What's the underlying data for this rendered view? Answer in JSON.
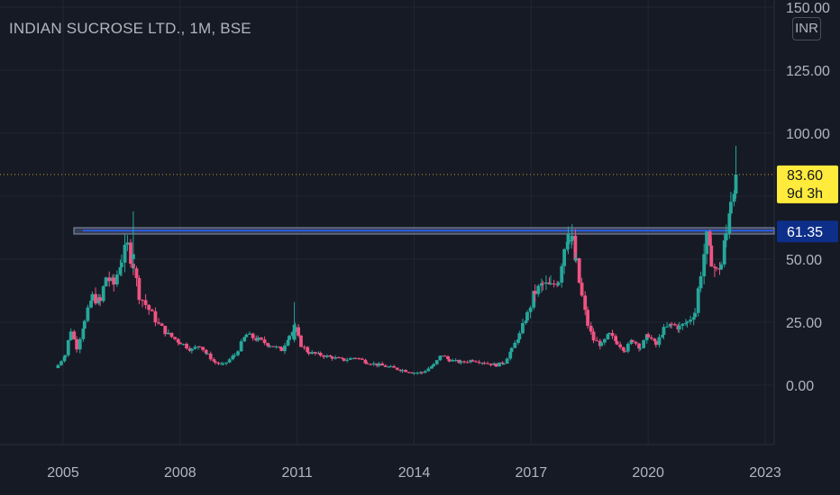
{
  "header": {
    "title": "INDIAN SUCROSE LTD., 1M, BSE"
  },
  "currency_button": {
    "label": "INR"
  },
  "price_labels": {
    "last_price": "83.60",
    "countdown": "9d 3h",
    "level_price": "61.35"
  },
  "colors": {
    "background": "#161a25",
    "up": "#26a69a",
    "down": "#ef5382",
    "grid": "#232734",
    "text": "#b2b5be",
    "last_price_badge": "#ffeb3b",
    "level_badge": "#0d2f8a",
    "level_box": "#3b4560"
  },
  "chart_data": {
    "type": "candlestick",
    "title": "INDIAN SUCROSE LTD., 1M, BSE",
    "interval": "1M",
    "exchange": "BSE",
    "currency": "INR",
    "y_axis_ticks": [
      "150.00",
      "125.00",
      "100.00",
      "83.60",
      "61.35",
      "50.00",
      "25.00",
      "0.00"
    ],
    "x_axis_ticks": [
      "2005",
      "2008",
      "2011",
      "2014",
      "2017",
      "2020",
      "2023"
    ],
    "ylim": [
      -20,
      150
    ],
    "xlim": [
      2004.0,
      2023.4
    ],
    "last_price": 83.6,
    "horizontal_level": {
      "value": 61.35,
      "low": 60.0,
      "high": 62.5,
      "from": 2005.3
    },
    "grid": true,
    "series": [
      {
        "t": 2004.87,
        "c": 8
      },
      {
        "t": 2005.05,
        "c": 12
      },
      {
        "t": 2005.2,
        "c": 22
      },
      {
        "t": 2005.35,
        "c": 15
      },
      {
        "t": 2005.55,
        "c": 25
      },
      {
        "t": 2005.75,
        "c": 35
      },
      {
        "t": 2005.95,
        "c": 33
      },
      {
        "t": 2006.1,
        "c": 43
      },
      {
        "t": 2006.3,
        "c": 40
      },
      {
        "t": 2006.5,
        "c": 50
      },
      {
        "t": 2006.65,
        "c": 55
      },
      {
        "t": 2006.8,
        "c": 48
      },
      {
        "t": 2006.95,
        "c": 36
      },
      {
        "t": 2007.2,
        "c": 30
      },
      {
        "t": 2007.45,
        "c": 24
      },
      {
        "t": 2007.7,
        "c": 20
      },
      {
        "t": 2008.0,
        "c": 17
      },
      {
        "t": 2008.3,
        "c": 14
      },
      {
        "t": 2008.5,
        "c": 16
      },
      {
        "t": 2008.7,
        "c": 12
      },
      {
        "t": 2008.9,
        "c": 9
      },
      {
        "t": 2009.1,
        "c": 8
      },
      {
        "t": 2009.4,
        "c": 12
      },
      {
        "t": 2009.7,
        "c": 20
      },
      {
        "t": 2010.0,
        "c": 18
      },
      {
        "t": 2010.3,
        "c": 16
      },
      {
        "t": 2010.6,
        "c": 14
      },
      {
        "t": 2010.8,
        "c": 20
      },
      {
        "t": 2010.95,
        "c": 22
      },
      {
        "t": 2011.1,
        "c": 16
      },
      {
        "t": 2011.3,
        "c": 13
      },
      {
        "t": 2011.6,
        "c": 12
      },
      {
        "t": 2011.9,
        "c": 11
      },
      {
        "t": 2012.2,
        "c": 10
      },
      {
        "t": 2012.5,
        "c": 11
      },
      {
        "t": 2012.8,
        "c": 9
      },
      {
        "t": 2013.1,
        "c": 8
      },
      {
        "t": 2013.4,
        "c": 7
      },
      {
        "t": 2013.7,
        "c": 6
      },
      {
        "t": 2014.0,
        "c": 5
      },
      {
        "t": 2014.2,
        "c": 5
      },
      {
        "t": 2014.5,
        "c": 8
      },
      {
        "t": 2014.7,
        "c": 12
      },
      {
        "t": 2014.9,
        "c": 10
      },
      {
        "t": 2015.2,
        "c": 9
      },
      {
        "t": 2015.5,
        "c": 10
      },
      {
        "t": 2015.8,
        "c": 9
      },
      {
        "t": 2016.1,
        "c": 8
      },
      {
        "t": 2016.3,
        "c": 9
      },
      {
        "t": 2016.5,
        "c": 14
      },
      {
        "t": 2016.7,
        "c": 20
      },
      {
        "t": 2016.9,
        "c": 28
      },
      {
        "t": 2017.1,
        "c": 37
      },
      {
        "t": 2017.3,
        "c": 40
      },
      {
        "t": 2017.5,
        "c": 39
      },
      {
        "t": 2017.7,
        "c": 42
      },
      {
        "t": 2017.85,
        "c": 55
      },
      {
        "t": 2017.95,
        "c": 60
      },
      {
        "t": 2018.05,
        "c": 57
      },
      {
        "t": 2018.15,
        "c": 48
      },
      {
        "t": 2018.3,
        "c": 35
      },
      {
        "t": 2018.45,
        "c": 24
      },
      {
        "t": 2018.6,
        "c": 18
      },
      {
        "t": 2018.8,
        "c": 16
      },
      {
        "t": 2019.0,
        "c": 20
      },
      {
        "t": 2019.2,
        "c": 17
      },
      {
        "t": 2019.4,
        "c": 14
      },
      {
        "t": 2019.6,
        "c": 18
      },
      {
        "t": 2019.8,
        "c": 15
      },
      {
        "t": 2020.0,
        "c": 20
      },
      {
        "t": 2020.2,
        "c": 16
      },
      {
        "t": 2020.4,
        "c": 22
      },
      {
        "t": 2020.6,
        "c": 24
      },
      {
        "t": 2020.8,
        "c": 23
      },
      {
        "t": 2021.0,
        "c": 25
      },
      {
        "t": 2021.2,
        "c": 29
      },
      {
        "t": 2021.35,
        "c": 45
      },
      {
        "t": 2021.5,
        "c": 58
      },
      {
        "t": 2021.62,
        "c": 50
      },
      {
        "t": 2021.75,
        "c": 45
      },
      {
        "t": 2021.87,
        "c": 48
      },
      {
        "t": 2022.0,
        "c": 60
      },
      {
        "t": 2022.12,
        "c": 75
      },
      {
        "t": 2022.25,
        "c": 83.6
      }
    ]
  }
}
